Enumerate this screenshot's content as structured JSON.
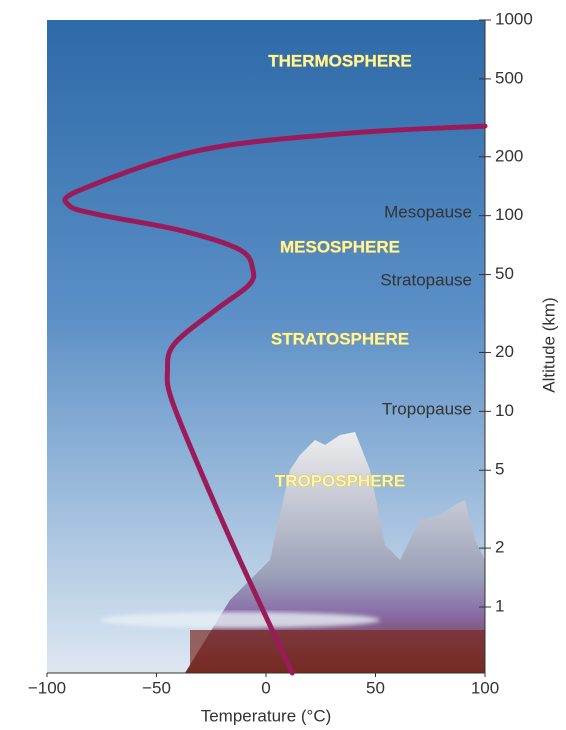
{
  "chart_data": {
    "type": "line",
    "x_label": "Temperature (°C)",
    "y_label": "Altitude (km)",
    "x": [
      12,
      -12,
      -30,
      -43,
      -45,
      -42,
      -23,
      -8,
      -6,
      -12,
      -39,
      -76,
      -90,
      -85,
      -30,
      38,
      100
    ],
    "values": [
      0.46,
      1.74,
      5.0,
      11.4,
      16,
      22,
      33,
      44,
      53,
      67,
      84,
      101,
      113,
      135,
      216,
      264,
      287
    ],
    "color": "#9b1b5a",
    "xlim": [
      -100,
      100
    ],
    "xticks": [
      {
        "value": -100,
        "label": "−100"
      },
      {
        "value": -50,
        "label": "−50"
      },
      0,
      50,
      100
    ],
    "ylim": [
      0.46,
      1000
    ],
    "ylog": true,
    "yticks": [
      1,
      2,
      5,
      10,
      20,
      50,
      100,
      200,
      500,
      1000
    ],
    "boundaries": [
      "Mesopause",
      "Stratopause",
      "Tropopause"
    ],
    "layers": [
      "THERMOSPHERE",
      "MESOSPHERE",
      "STRATOSPHERE",
      "TROPOSPHERE"
    ]
  }
}
